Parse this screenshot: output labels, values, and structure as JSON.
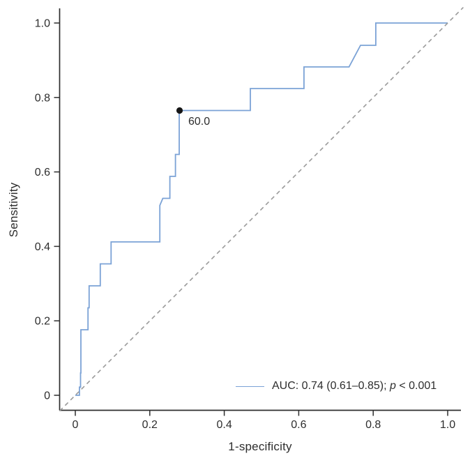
{
  "figure": {
    "kind": "ROC curve plot",
    "background": "#ffffff"
  },
  "chart_data": {
    "type": "line",
    "title": "",
    "xlabel": "1-specificity",
    "ylabel": "Sensitivity",
    "xlim": [
      0,
      1
    ],
    "ylim": [
      0,
      1
    ],
    "grid": false,
    "x_tick_labels": [
      "0",
      "0.2",
      "0.4",
      "0.6",
      "0.8",
      "1.0"
    ],
    "x_tick_values": [
      0,
      0.2,
      0.4,
      0.6,
      0.8,
      1.0
    ],
    "y_tick_labels": [
      "0",
      "0.2",
      "0.4",
      "0.6",
      "0.8",
      "1.0"
    ],
    "y_tick_values": [
      0,
      0.2,
      0.4,
      0.6,
      0.8,
      1.0
    ],
    "series": [
      {
        "name": "ROC curve",
        "color": "#7BA2D6",
        "style": "solid",
        "width": 1.8,
        "points": [
          [
            0,
            0
          ],
          [
            0.011,
            0
          ],
          [
            0.011,
            0.022
          ],
          [
            0.014,
            0.022
          ],
          [
            0.014,
            0.06
          ],
          [
            0.015,
            0.06
          ],
          [
            0.015,
            0.176
          ],
          [
            0.034,
            0.176
          ],
          [
            0.034,
            0.235
          ],
          [
            0.037,
            0.235
          ],
          [
            0.037,
            0.294
          ],
          [
            0.067,
            0.294
          ],
          [
            0.067,
            0.353
          ],
          [
            0.096,
            0.353
          ],
          [
            0.096,
            0.412
          ],
          [
            0.227,
            0.412
          ],
          [
            0.227,
            0.51
          ],
          [
            0.235,
            0.529
          ],
          [
            0.254,
            0.529
          ],
          [
            0.254,
            0.588
          ],
          [
            0.269,
            0.588
          ],
          [
            0.269,
            0.647
          ],
          [
            0.279,
            0.647
          ],
          [
            0.279,
            0.765
          ],
          [
            0.47,
            0.765
          ],
          [
            0.47,
            0.824
          ],
          [
            0.614,
            0.824
          ],
          [
            0.614,
            0.882
          ],
          [
            0.735,
            0.882
          ],
          [
            0.766,
            0.94
          ],
          [
            0.807,
            0.94
          ],
          [
            0.807,
            1.0
          ],
          [
            1,
            1
          ]
        ]
      },
      {
        "name": "chance diagonal",
        "color": "#9a9a9a",
        "style": "dashed",
        "width": 1.6,
        "points": [
          [
            -0.042,
            -0.042
          ],
          [
            1.042,
            1.042
          ]
        ]
      }
    ],
    "annotation": {
      "label": "60.0",
      "x": 0.28,
      "y": 0.765,
      "marker": "filled-circle",
      "marker_color": "#161616"
    },
    "legend": {
      "position": "bottom-right",
      "pre": "AUC: 0.74 (0.61–0.85); ",
      "italic": "p",
      "post": " < 0.001",
      "line_color": "#7BA2D6"
    },
    "axis_color": "#2d2d2d"
  }
}
